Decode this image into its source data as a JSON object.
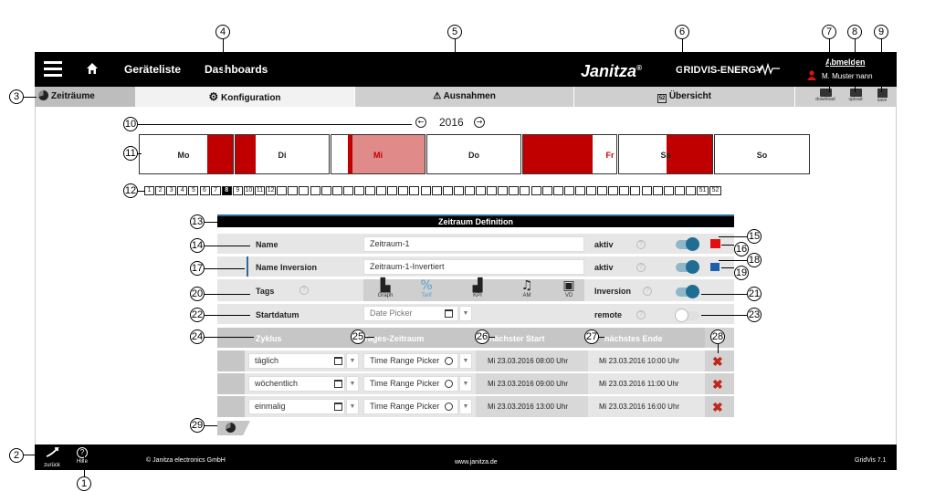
{
  "topbar": {
    "device_list": "Geräteliste",
    "dashboards": "Dashboards",
    "brand": "Janitza",
    "brand_reg": "®",
    "product": "GRIDVIS-ENERGY",
    "logout": "Abmelden",
    "user": "M. Mustermann"
  },
  "tabs": [
    {
      "label": "Zeiträume"
    },
    {
      "label": "Konfiguration"
    },
    {
      "label": "Ausnahmen"
    },
    {
      "label": "Übersicht"
    }
  ],
  "actions": [
    {
      "label": "download"
    },
    {
      "label": "upload"
    },
    {
      "label": "save"
    }
  ],
  "year": {
    "value": "2016",
    "prev": "←",
    "next": "→"
  },
  "days": [
    {
      "label": "Mo"
    },
    {
      "label": "Di"
    },
    {
      "label": "Mi"
    },
    {
      "label": "Do"
    },
    {
      "label": "Fr"
    },
    {
      "label": "Sa"
    },
    {
      "label": "So"
    }
  ],
  "weeks": {
    "labeled": [
      "1",
      "2",
      "3",
      "4",
      "5",
      "6",
      "7",
      "8",
      "9",
      "10",
      "11",
      "12"
    ],
    "selected": "8",
    "tail": [
      "51",
      "52"
    ]
  },
  "form": {
    "title": "Zeitraum Definition",
    "name_label": "Name",
    "name_value": "Zeitraum-1",
    "inv_label": "Name Inversion",
    "inv_value": "Zeitraum-1-Invertiert",
    "aktiv_label": "aktiv",
    "inversion_label": "Inversion",
    "remote_label": "remote",
    "help": "?",
    "tags_label": "Tags",
    "tags": [
      {
        "name": "Graph",
        "icon": "bar-chart-icon"
      },
      {
        "name": "Tarif",
        "icon": "tariff-icon"
      },
      {
        "name": "KPI",
        "icon": "kpi-icon"
      },
      {
        "name": "AM",
        "icon": "bell-icon"
      },
      {
        "name": "VD",
        "icon": "vd-icon"
      }
    ],
    "startdate_label": "Startdatum",
    "startdate_placeholder": "Date Picker",
    "colors": {
      "active_red": "#e01010",
      "inversion_blue": "#1b5fae",
      "toggle_on": "#1f6d93"
    }
  },
  "table": {
    "headers": {
      "cycle": "Zyklus",
      "daily_range": "Tages-Zeitraum",
      "next_start": "nächster Start",
      "next_end": "nächstes Ende"
    },
    "rows": [
      {
        "cycle": "täglich",
        "range": "Time Range Picker",
        "start": "Mi 23.03.2016 08:00 Uhr",
        "end": "Mi 23.03.2016 10:00 Uhr"
      },
      {
        "cycle": "wöchentlich",
        "range": "Time Range Picker",
        "start": "Mi 23.03.2016 09:00 Uhr",
        "end": "Mi 23.03.2016 11:00 Uhr"
      },
      {
        "cycle": "einmalig",
        "range": "Time Range Picker",
        "start": "Mi 23.03.2016 13:00 Uhr",
        "end": "Mi 23.03.2016 16:00 Uhr"
      }
    ]
  },
  "footer": {
    "back": "zurück",
    "help": "Hilfe",
    "copyright": "© Janitza electronics GmbH",
    "website": "www.janitza.de",
    "version": "GridVis 7.1"
  },
  "callouts": [
    "1",
    "2",
    "3",
    "4",
    "5",
    "6",
    "7",
    "8",
    "9",
    "10",
    "11",
    "12",
    "13",
    "14",
    "15",
    "16",
    "17",
    "18",
    "19",
    "20",
    "21",
    "22",
    "23",
    "24",
    "25",
    "26",
    "27",
    "28",
    "29"
  ]
}
